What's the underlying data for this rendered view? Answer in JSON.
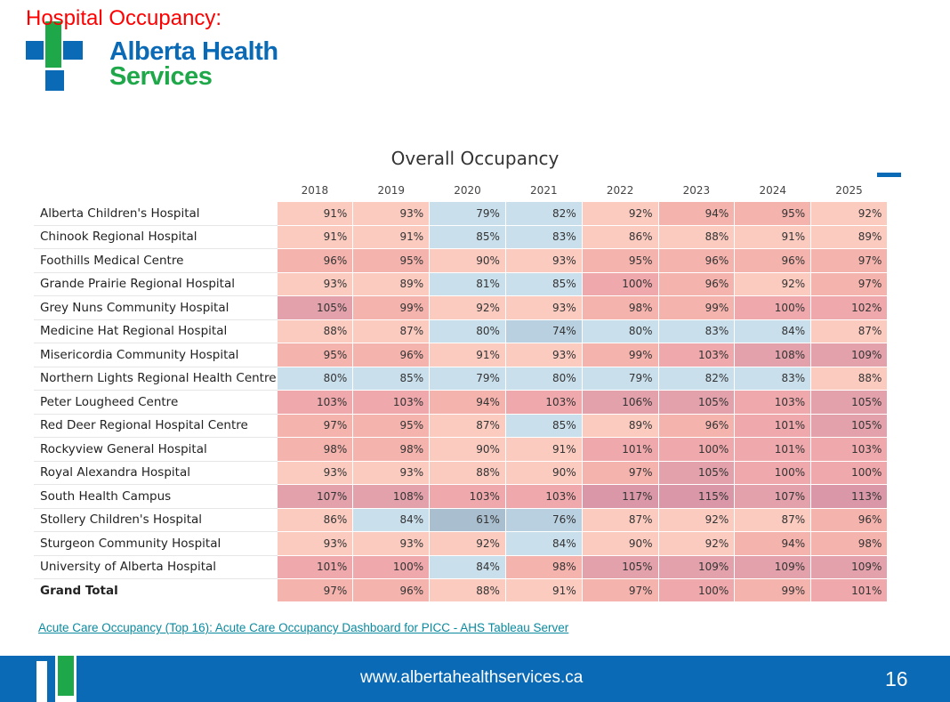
{
  "slide": {
    "title": "Hospital Occupancy:",
    "logo_line1": "Alberta Health",
    "logo_line2": "Services"
  },
  "table": {
    "title": "Overall Occupancy",
    "years": [
      "2018",
      "2019",
      "2020",
      "2021",
      "2022",
      "2023",
      "2024",
      "2025"
    ],
    "rows": [
      {
        "name": "Alberta Children's Hospital",
        "values": [
          "91%",
          "93%",
          "79%",
          "82%",
          "92%",
          "94%",
          "95%",
          "92%"
        ]
      },
      {
        "name": "Chinook Regional Hospital",
        "values": [
          "91%",
          "91%",
          "85%",
          "83%",
          "86%",
          "88%",
          "91%",
          "89%"
        ]
      },
      {
        "name": "Foothills Medical Centre",
        "values": [
          "96%",
          "95%",
          "90%",
          "93%",
          "95%",
          "96%",
          "96%",
          "97%"
        ]
      },
      {
        "name": "Grande Prairie Regional Hospital",
        "values": [
          "93%",
          "89%",
          "81%",
          "85%",
          "100%",
          "96%",
          "92%",
          "97%"
        ]
      },
      {
        "name": "Grey Nuns Community Hospital",
        "values": [
          "105%",
          "99%",
          "92%",
          "93%",
          "98%",
          "99%",
          "100%",
          "102%"
        ]
      },
      {
        "name": "Medicine Hat Regional Hospital",
        "values": [
          "88%",
          "87%",
          "80%",
          "74%",
          "80%",
          "83%",
          "84%",
          "87%"
        ]
      },
      {
        "name": "Misericordia Community Hospital",
        "values": [
          "95%",
          "96%",
          "91%",
          "93%",
          "99%",
          "103%",
          "108%",
          "109%"
        ]
      },
      {
        "name": "Northern Lights Regional Health Centre",
        "values": [
          "80%",
          "85%",
          "79%",
          "80%",
          "79%",
          "82%",
          "83%",
          "88%"
        ]
      },
      {
        "name": "Peter Lougheed Centre",
        "values": [
          "103%",
          "103%",
          "94%",
          "103%",
          "106%",
          "105%",
          "103%",
          "105%"
        ]
      },
      {
        "name": "Red Deer Regional Hospital Centre",
        "values": [
          "97%",
          "95%",
          "87%",
          "85%",
          "89%",
          "96%",
          "101%",
          "105%"
        ]
      },
      {
        "name": "Rockyview General Hospital",
        "values": [
          "98%",
          "98%",
          "90%",
          "91%",
          "101%",
          "100%",
          "101%",
          "103%"
        ]
      },
      {
        "name": "Royal Alexandra Hospital",
        "values": [
          "93%",
          "93%",
          "88%",
          "90%",
          "97%",
          "105%",
          "100%",
          "100%"
        ]
      },
      {
        "name": "South Health Campus",
        "values": [
          "107%",
          "108%",
          "103%",
          "103%",
          "117%",
          "115%",
          "107%",
          "113%"
        ]
      },
      {
        "name": "Stollery Children's Hospital",
        "values": [
          "86%",
          "84%",
          "61%",
          "76%",
          "87%",
          "92%",
          "87%",
          "96%"
        ]
      },
      {
        "name": "Sturgeon Community Hospital",
        "values": [
          "93%",
          "93%",
          "92%",
          "84%",
          "90%",
          "92%",
          "94%",
          "98%"
        ]
      },
      {
        "name": "University of Alberta Hospital",
        "values": [
          "101%",
          "100%",
          "84%",
          "98%",
          "105%",
          "109%",
          "109%",
          "109%"
        ]
      }
    ],
    "total": {
      "name": "Grand Total",
      "values": [
        "97%",
        "96%",
        "88%",
        "91%",
        "97%",
        "100%",
        "99%",
        "101%"
      ]
    }
  },
  "source_link": "Acute Care Occupancy (Top 16): Acute Care Occupancy Dashboard for PICC - AHS Tableau Server",
  "footer": {
    "url": "www.albertahealthservices.ca",
    "page_number": "16"
  },
  "colors": {
    "brand_blue": "#0a6ab6",
    "brand_green": "#1fa84a",
    "title_red": "#ff0000",
    "link_teal": "#0a8a9f"
  }
}
